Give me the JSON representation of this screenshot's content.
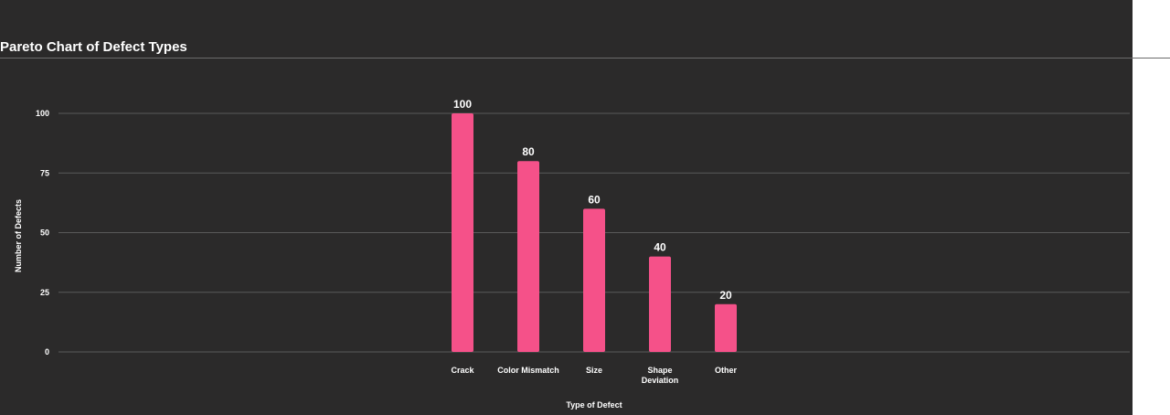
{
  "chart_data": {
    "type": "bar",
    "title": "Pareto Chart of Defect Types",
    "xlabel": "Type of Defect",
    "ylabel": "Number of Defects",
    "categories": [
      "Crack",
      "Color Mismatch",
      "Size",
      "Shape Deviation",
      "Other"
    ],
    "values": [
      100,
      80,
      60,
      40,
      20
    ],
    "ylim": [
      0,
      100
    ],
    "yticks": [
      0,
      25,
      50,
      75,
      100
    ],
    "grid": true,
    "legend": "none",
    "bar_color": "#f55189",
    "data_labels": true
  },
  "colors": {
    "background": "#2b2a2a",
    "grid": "#5a5a5a",
    "text": "#ffffff"
  }
}
